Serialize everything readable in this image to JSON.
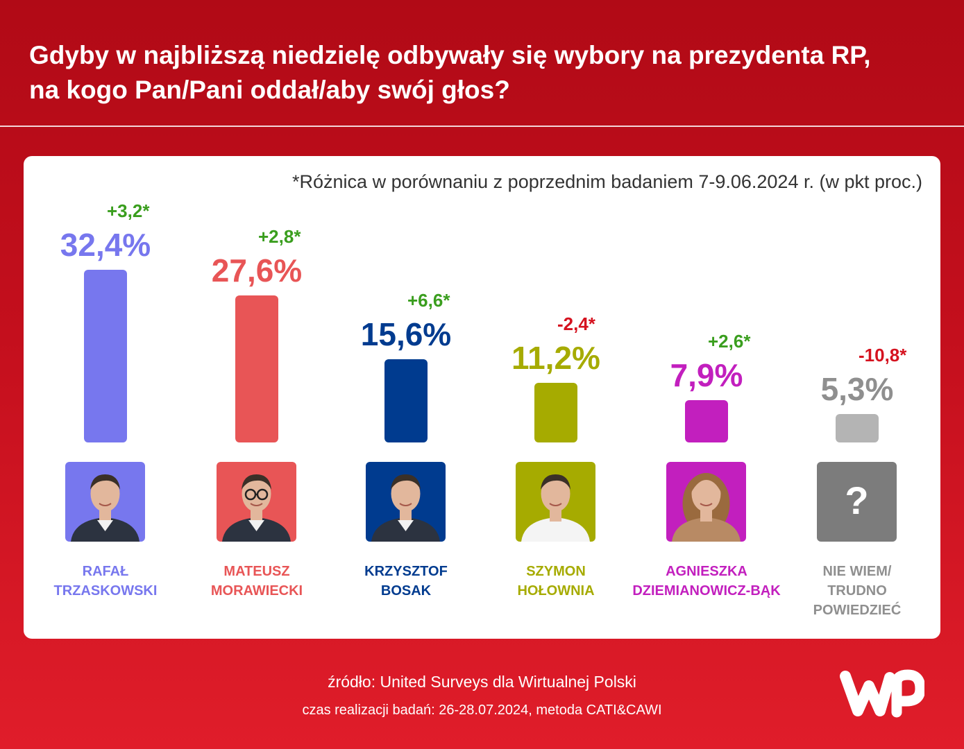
{
  "header": {
    "title_line1": "Gdyby w najbliższą niedzielę odbywały się wybory na prezydenta RP,",
    "title_line2": "na kogo Pan/Pani oddał/aby swój głos?"
  },
  "note": "*Różnica w porównaniu z poprzednim badaniem 7-9.06.2024 r. (w pkt proc.)",
  "chart_data": {
    "type": "bar",
    "title": "Gdyby w najbliższą niedzielę odbywały się wybory na prezydenta RP, na kogo Pan/Pani oddał/aby swój głos?",
    "unit": "%",
    "categories": [
      "RAFAŁ TRZASKOWSKI",
      "MATEUSZ MORAWIECKI",
      "KRZYSZTOF BOSAK",
      "SZYMON HOŁOWNIA",
      "AGNIESZKA DZIEMIANOWICZ-BĄK",
      "NIE WIEM/ TRUDNO POWIEDZIEĆ"
    ],
    "values": [
      32.4,
      27.6,
      15.6,
      11.2,
      7.9,
      5.3
    ],
    "ylim": [
      0,
      32.4
    ],
    "grid": false,
    "items": [
      {
        "name_lines": [
          "RAFAŁ",
          "TRZASKOWSKI"
        ],
        "value": 32.4,
        "value_label": "32,4%",
        "delta_label": "+3,2*",
        "color": "#7777ee",
        "delta_color": "#3a9e1e",
        "photo": "person-male-a"
      },
      {
        "name_lines": [
          "MATEUSZ",
          "MORAWIECKI"
        ],
        "value": 27.6,
        "value_label": "27,6%",
        "delta_label": "+2,8*",
        "color": "#e85556",
        "delta_color": "#3a9e1e",
        "photo": "person-male-glasses"
      },
      {
        "name_lines": [
          "KRZYSZTOF",
          "BOSAK"
        ],
        "value": 15.6,
        "value_label": "15,6%",
        "delta_label": "+6,6*",
        "color": "#003b8f",
        "delta_color": "#3a9e1e",
        "photo": "person-male-b"
      },
      {
        "name_lines": [
          "SZYMON",
          "HOŁOWNIA"
        ],
        "value": 11.2,
        "value_label": "11,2%",
        "delta_label": "-2,4*",
        "color": "#a6ab00",
        "delta_color": "#d5121f",
        "photo": "person-male-c"
      },
      {
        "name_lines": [
          "AGNIESZKA",
          "DZIEMIANOWICZ-BĄK"
        ],
        "value": 7.9,
        "value_label": "7,9%",
        "delta_label": "+2,6*",
        "color": "#c21fbe",
        "delta_color": "#3a9e1e",
        "photo": "person-female"
      },
      {
        "name_lines": [
          "NIE WIEM/",
          "TRUDNO",
          "POWIEDZIEĆ"
        ],
        "value": 5.3,
        "value_label": "5,3%",
        "delta_label": "-10,8*",
        "color": "#b4b4b4",
        "delta_color": "#d5121f",
        "text_color": "#8f8f8f",
        "photo": "question-mark",
        "photo_bg": "#7c7c7c",
        "placeholder_text": "?"
      }
    ]
  },
  "footer": {
    "source": "źródło: United Surveys dla Wirtualnej Polski",
    "time": "czas realizacji badań: 26-28.07.2024, metoda CATI&CAWI"
  },
  "logo": {
    "icon": "wp-logo",
    "color": "#ffffff"
  }
}
